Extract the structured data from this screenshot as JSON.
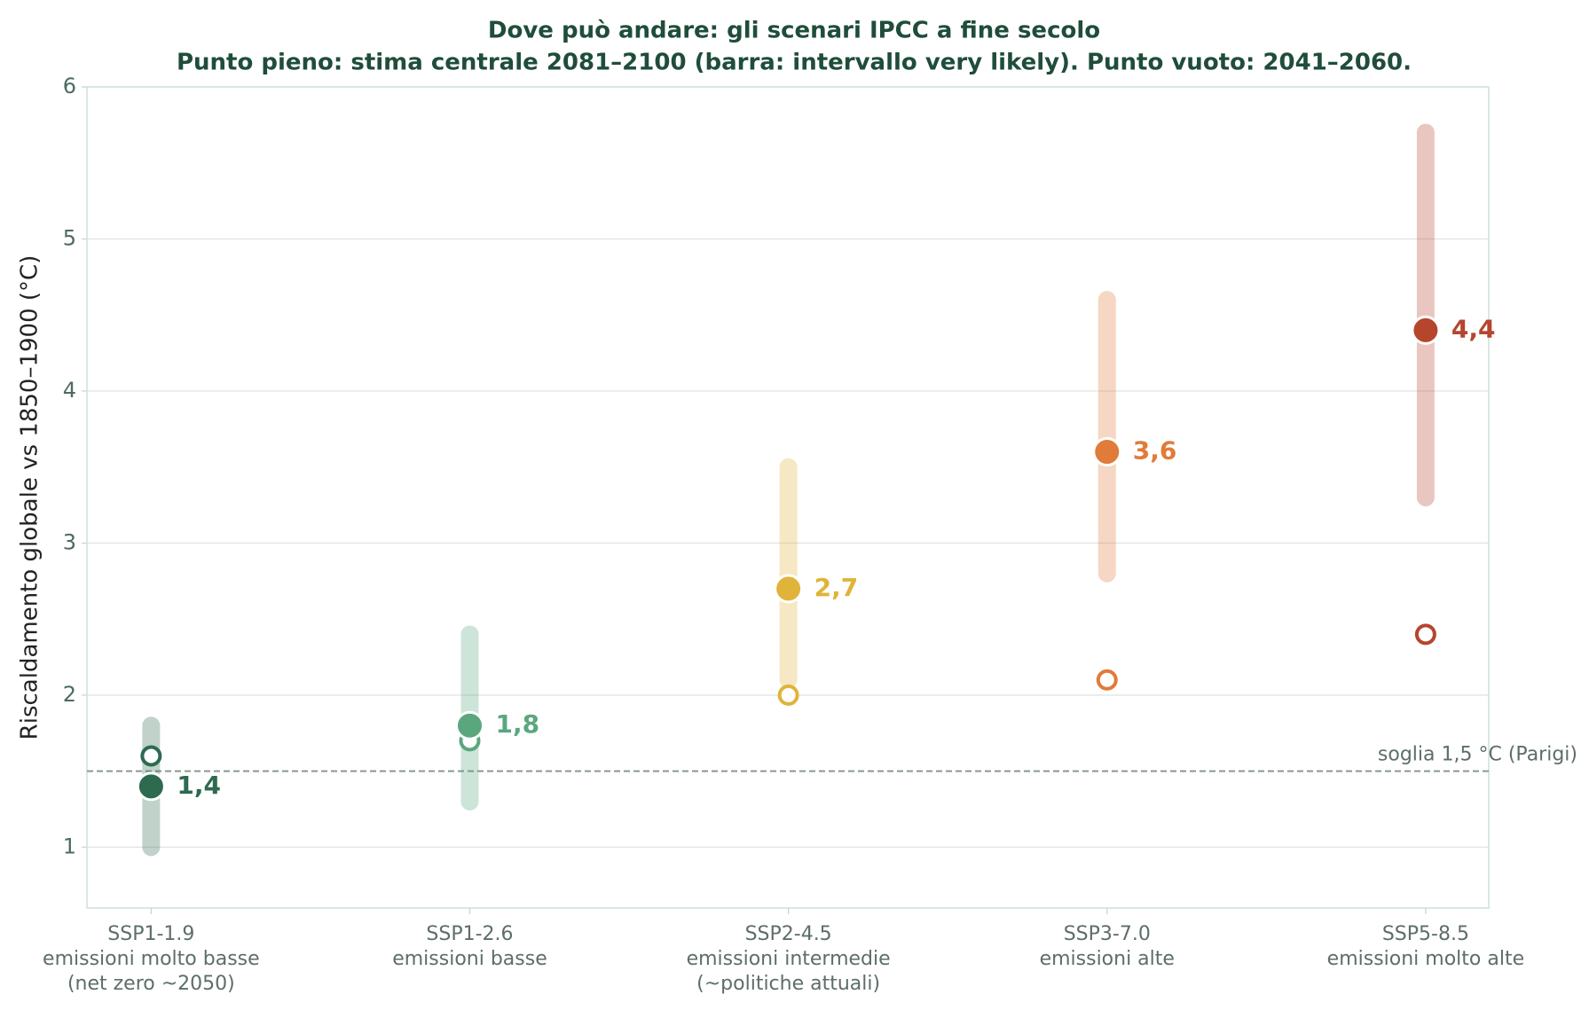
{
  "chart_data": {
    "type": "range-dot",
    "title": "Dove può andare: gli scenari IPCC a fine secolo",
    "subtitle": "Punto pieno: stima centrale 2081–2100 (barra: intervallo very likely). Punto vuoto: 2041–2060.",
    "y_label": "Riscaldamento globale vs 1850–1900 (°C)",
    "categories": [
      [
        "SSP1-1.9",
        "emissioni molto basse",
        "(net zero ~2050)"
      ],
      [
        "SSP1-2.6",
        "emissioni basse"
      ],
      [
        "SSP2-4.5",
        "emissioni intermedie",
        "(~politiche attuali)"
      ],
      [
        "SSP3-7.0",
        "emissioni alte"
      ],
      [
        "SSP5-8.5",
        "emissioni molto alte"
      ]
    ],
    "central": [
      1.4,
      1.8,
      2.7,
      3.6,
      4.4
    ],
    "value_labels": [
      "1,4",
      "1,8",
      "2,7",
      "3,6",
      "4,4"
    ],
    "low": [
      1.0,
      1.3,
      2.1,
      2.8,
      3.3
    ],
    "high": [
      1.8,
      2.4,
      3.5,
      4.6,
      5.7
    ],
    "mid_century": [
      1.6,
      1.7,
      2.0,
      2.1,
      2.4
    ],
    "colors": [
      "#2d6a4f",
      "#5aa77e",
      "#e0b43a",
      "#e07b39",
      "#b5452d"
    ],
    "threshold": {
      "value": 1.5,
      "label": "soglia 1,5 °C (Parigi)"
    },
    "ylim": [
      0.6,
      6
    ],
    "yticks": [
      1,
      2,
      3,
      4,
      5,
      6
    ],
    "grid": true
  }
}
